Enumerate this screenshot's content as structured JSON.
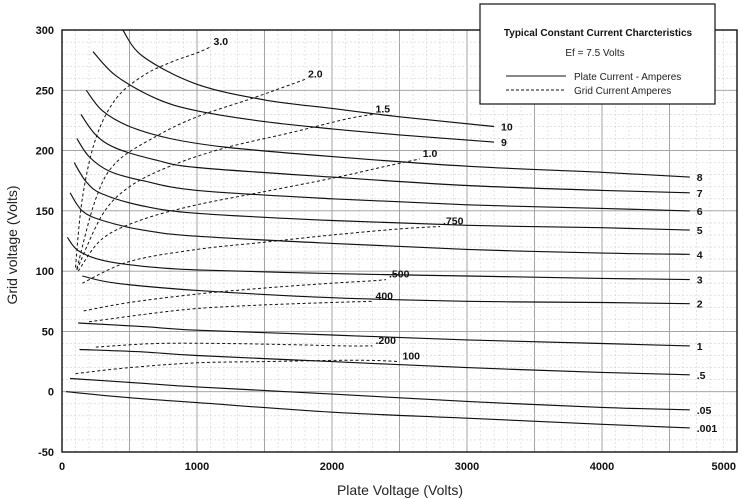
{
  "chart_data": {
    "type": "line",
    "xlabel": "Plate Voltage (Volts)",
    "ylabel": "Grid voltage (Volts)",
    "xlim": [
      0,
      5000
    ],
    "ylim": [
      -50,
      300
    ],
    "x_ticks": [
      "0",
      "1000",
      "2000",
      "3000",
      "4000",
      "5000"
    ],
    "y_ticks": [
      "-50",
      "0",
      "50",
      "100",
      "150",
      "200",
      "250",
      "300"
    ],
    "grid": true,
    "legend": {
      "placement": "top-right",
      "title": "Typical Constant Current Charcteristics",
      "subtitle": "Ef = 7.5 Volts",
      "entries": [
        {
          "label": "Plate Current - Amperes",
          "style": "solid"
        },
        {
          "label": "Grid Current   Amperes",
          "style": "dashed"
        }
      ]
    },
    "series": [
      {
        "name": "10",
        "style": "solid",
        "points": [
          [
            450,
            300
          ],
          [
            600,
            278
          ],
          [
            1000,
            255
          ],
          [
            1500,
            242
          ],
          [
            2000,
            235
          ],
          [
            2500,
            228
          ],
          [
            3200,
            220
          ]
        ]
      },
      {
        "name": "9",
        "style": "solid",
        "points": [
          [
            230,
            282
          ],
          [
            400,
            262
          ],
          [
            700,
            243
          ],
          [
            1000,
            233
          ],
          [
            1500,
            224
          ],
          [
            2000,
            218
          ],
          [
            2500,
            213
          ],
          [
            3200,
            207
          ]
        ]
      },
      {
        "name": "8",
        "style": "solid",
        "points": [
          [
            180,
            250
          ],
          [
            300,
            233
          ],
          [
            500,
            220
          ],
          [
            800,
            210
          ],
          [
            1200,
            203
          ],
          [
            2000,
            195
          ],
          [
            3000,
            187
          ],
          [
            4000,
            182
          ],
          [
            4650,
            178
          ]
        ]
      },
      {
        "name": "7",
        "style": "solid",
        "points": [
          [
            140,
            230
          ],
          [
            250,
            213
          ],
          [
            400,
            202
          ],
          [
            700,
            192
          ],
          [
            1000,
            186
          ],
          [
            2000,
            178
          ],
          [
            3000,
            171
          ],
          [
            4000,
            167
          ],
          [
            4650,
            165
          ]
        ]
      },
      {
        "name": "6",
        "style": "solid",
        "points": [
          [
            110,
            210
          ],
          [
            200,
            195
          ],
          [
            350,
            183
          ],
          [
            600,
            175
          ],
          [
            1000,
            167
          ],
          [
            2000,
            160
          ],
          [
            3000,
            155
          ],
          [
            4000,
            152
          ],
          [
            4650,
            150
          ]
        ]
      },
      {
        "name": "5",
        "style": "solid",
        "points": [
          [
            90,
            190
          ],
          [
            180,
            174
          ],
          [
            300,
            164
          ],
          [
            600,
            154
          ],
          [
            1000,
            148
          ],
          [
            2000,
            142
          ],
          [
            3000,
            138
          ],
          [
            4000,
            136
          ],
          [
            4650,
            134
          ]
        ]
      },
      {
        "name": "4",
        "style": "solid",
        "points": [
          [
            60,
            165
          ],
          [
            150,
            150
          ],
          [
            300,
            142
          ],
          [
            600,
            134
          ],
          [
            1000,
            129
          ],
          [
            2000,
            123
          ],
          [
            3000,
            118
          ],
          [
            4000,
            115
          ],
          [
            4650,
            114
          ]
        ]
      },
      {
        "name": "3",
        "style": "solid",
        "points": [
          [
            40,
            128
          ],
          [
            120,
            117
          ],
          [
            300,
            109
          ],
          [
            600,
            104
          ],
          [
            1000,
            101
          ],
          [
            2000,
            98
          ],
          [
            3000,
            96
          ],
          [
            4000,
            94
          ],
          [
            4650,
            93
          ]
        ]
      },
      {
        "name": "2",
        "style": "solid",
        "points": [
          [
            150,
            96
          ],
          [
            400,
            90
          ],
          [
            1000,
            84
          ],
          [
            2000,
            78
          ],
          [
            3000,
            75
          ],
          [
            4000,
            74
          ],
          [
            4650,
            73
          ]
        ]
      },
      {
        "name": "1",
        "style": "solid",
        "points": [
          [
            120,
            57
          ],
          [
            600,
            54
          ],
          [
            1000,
            51
          ],
          [
            2000,
            47
          ],
          [
            3000,
            43
          ],
          [
            4000,
            40
          ],
          [
            4650,
            38
          ]
        ]
      },
      {
        "name": ".5",
        "style": "solid",
        "points": [
          [
            130,
            35
          ],
          [
            600,
            33
          ],
          [
            1000,
            30
          ],
          [
            2000,
            25
          ],
          [
            3000,
            20
          ],
          [
            4000,
            16
          ],
          [
            4650,
            14
          ]
        ]
      },
      {
        "name": ".05",
        "style": "solid",
        "points": [
          [
            60,
            11
          ],
          [
            600,
            7
          ],
          [
            1000,
            4
          ],
          [
            2000,
            -2
          ],
          [
            3000,
            -8
          ],
          [
            4000,
            -13
          ],
          [
            4650,
            -15
          ]
        ]
      },
      {
        "name": ".001",
        "style": "solid",
        "points": [
          [
            30,
            0
          ],
          [
            500,
            -5
          ],
          [
            1000,
            -9
          ],
          [
            2000,
            -17
          ],
          [
            3000,
            -22
          ],
          [
            4000,
            -27
          ],
          [
            4650,
            -30
          ]
        ]
      },
      {
        "name": "3.0",
        "style": "dashed",
        "points": [
          [
            100,
            103
          ],
          [
            150,
            160
          ],
          [
            250,
            210
          ],
          [
            400,
            243
          ],
          [
            600,
            262
          ],
          [
            800,
            273
          ],
          [
            1000,
            281
          ],
          [
            1100,
            286
          ]
        ]
      },
      {
        "name": "2.0",
        "style": "dashed",
        "points": [
          [
            110,
            102
          ],
          [
            250,
            160
          ],
          [
            400,
            190
          ],
          [
            700,
            212
          ],
          [
            1000,
            228
          ],
          [
            1400,
            243
          ],
          [
            1700,
            255
          ],
          [
            1800,
            259
          ]
        ]
      },
      {
        "name": "1.5",
        "style": "dashed",
        "points": [
          [
            110,
            101
          ],
          [
            300,
            147
          ],
          [
            500,
            170
          ],
          [
            800,
            187
          ],
          [
            1200,
            202
          ],
          [
            1700,
            215
          ],
          [
            2100,
            226
          ],
          [
            2300,
            230
          ]
        ]
      },
      {
        "name": "1.0",
        "style": "dashed",
        "points": [
          [
            120,
            100
          ],
          [
            300,
            127
          ],
          [
            600,
            143
          ],
          [
            1000,
            155
          ],
          [
            1500,
            166
          ],
          [
            2000,
            177
          ],
          [
            2400,
            187
          ],
          [
            2650,
            193
          ]
        ]
      },
      {
        "name": ".750",
        "style": "dashed",
        "points": [
          [
            150,
            90
          ],
          [
            500,
            108
          ],
          [
            1000,
            118
          ],
          [
            1500,
            124
          ],
          [
            2000,
            130
          ],
          [
            2500,
            135
          ],
          [
            2800,
            137
          ]
        ]
      },
      {
        "name": ".500",
        "style": "dashed",
        "points": [
          [
            160,
            67
          ],
          [
            500,
            74
          ],
          [
            1000,
            81
          ],
          [
            1500,
            86
          ],
          [
            2000,
            90
          ],
          [
            2300,
            92
          ],
          [
            2400,
            93
          ]
        ]
      },
      {
        "name": "400",
        "style": "dashed",
        "points": [
          [
            200,
            58
          ],
          [
            600,
            64
          ],
          [
            1000,
            69
          ],
          [
            1500,
            72
          ],
          [
            2000,
            74
          ],
          [
            2300,
            75
          ]
        ]
      },
      {
        "name": ".200",
        "style": "dashed",
        "points": [
          [
            250,
            37
          ],
          [
            700,
            40
          ],
          [
            1200,
            40
          ],
          [
            1700,
            39
          ],
          [
            2100,
            38
          ],
          [
            2300,
            38
          ]
        ]
      },
      {
        "name": "100",
        "style": "dashed",
        "points": [
          [
            100,
            15
          ],
          [
            500,
            20
          ],
          [
            1000,
            24
          ],
          [
            1500,
            25
          ],
          [
            2000,
            26
          ],
          [
            2300,
            26
          ],
          [
            2500,
            25
          ]
        ]
      }
    ]
  }
}
